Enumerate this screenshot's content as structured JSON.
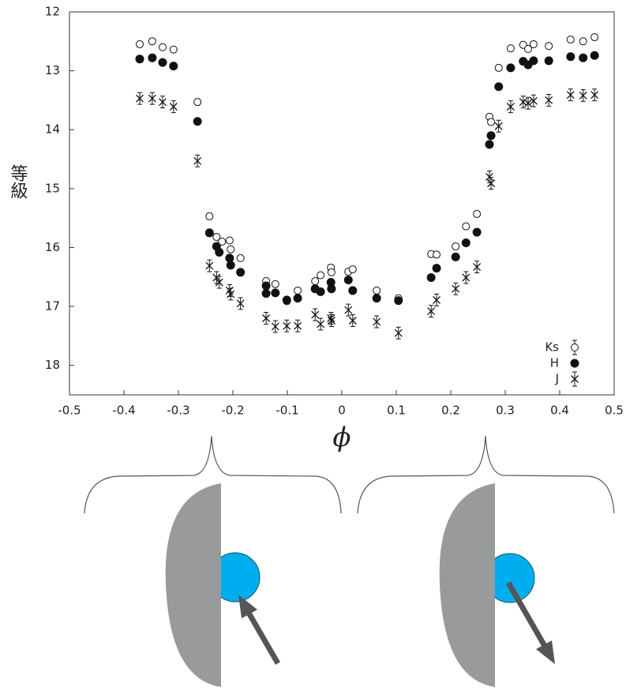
{
  "chart_data": {
    "type": "scatter",
    "xlabel": "ϕ",
    "ylabel": "等級",
    "xlim": [
      -0.5,
      0.5
    ],
    "xticks": [
      -0.5,
      -0.4,
      -0.3,
      -0.2,
      -0.1,
      0,
      0.1,
      0.2,
      0.3,
      0.4,
      0.5
    ],
    "ylim": [
      12,
      18.5
    ],
    "yticks": [
      12,
      13,
      14,
      15,
      16,
      17,
      18
    ],
    "y_inverted": true,
    "legend": "lower right",
    "series": [
      {
        "name": "Ks",
        "marker": "open-circle",
        "color": "#111111",
        "x": [
          -0.371,
          -0.348,
          -0.329,
          -0.309,
          -0.265,
          -0.243,
          -0.23,
          -0.22,
          -0.206,
          -0.204,
          -0.186,
          -0.139,
          -0.122,
          -0.101,
          -0.081,
          -0.049,
          -0.039,
          -0.02,
          -0.019,
          0.012,
          0.02,
          0.064,
          0.104,
          0.164,
          0.174,
          0.209,
          0.228,
          0.248,
          0.271,
          0.274,
          0.288,
          0.31,
          0.333,
          0.342,
          0.352,
          0.38,
          0.42,
          0.443,
          0.464
        ],
        "values": [
          12.55,
          12.5,
          12.6,
          12.64,
          13.53,
          15.47,
          15.82,
          15.9,
          15.88,
          16.03,
          16.18,
          16.57,
          16.62,
          16.91,
          16.73,
          16.57,
          16.47,
          16.34,
          16.42,
          16.41,
          16.37,
          16.73,
          16.86,
          16.11,
          16.12,
          15.98,
          15.64,
          15.43,
          13.78,
          13.87,
          12.95,
          12.62,
          12.56,
          12.63,
          12.55,
          12.58,
          12.47,
          12.5,
          12.43
        ],
        "errors": [
          0.05,
          0.05,
          0.05,
          0.05,
          0.05,
          0.05,
          0.05,
          0.05,
          0.05,
          0.05,
          0.05,
          0.05,
          0.05,
          0.05,
          0.05,
          0.05,
          0.05,
          0.05,
          0.05,
          0.05,
          0.05,
          0.05,
          0.05,
          0.05,
          0.05,
          0.05,
          0.05,
          0.05,
          0.05,
          0.05,
          0.05,
          0.05,
          0.05,
          0.05,
          0.05,
          0.05,
          0.05,
          0.05,
          0.05
        ]
      },
      {
        "name": "H",
        "marker": "filled-circle",
        "color": "#111111",
        "x": [
          -0.371,
          -0.348,
          -0.329,
          -0.309,
          -0.265,
          -0.243,
          -0.23,
          -0.225,
          -0.206,
          -0.204,
          -0.186,
          -0.139,
          -0.139,
          -0.122,
          -0.101,
          -0.081,
          -0.049,
          -0.039,
          -0.02,
          -0.019,
          0.012,
          0.02,
          0.064,
          0.104,
          0.164,
          0.174,
          0.209,
          0.228,
          0.248,
          0.271,
          0.274,
          0.288,
          0.31,
          0.333,
          0.342,
          0.352,
          0.38,
          0.42,
          0.443,
          0.464
        ],
        "values": [
          12.8,
          12.78,
          12.86,
          12.92,
          13.86,
          15.75,
          15.98,
          16.08,
          16.18,
          16.3,
          16.42,
          16.65,
          16.78,
          16.77,
          16.89,
          16.86,
          16.7,
          16.75,
          16.59,
          16.7,
          16.55,
          16.73,
          16.86,
          16.9,
          16.51,
          16.35,
          16.16,
          15.92,
          15.74,
          14.25,
          14.1,
          13.27,
          12.95,
          12.84,
          12.9,
          12.83,
          12.83,
          12.76,
          12.78,
          12.74
        ]
      },
      {
        "name": "J",
        "marker": "cross",
        "color": "#111111",
        "x": [
          -0.371,
          -0.348,
          -0.329,
          -0.309,
          -0.265,
          -0.243,
          -0.23,
          -0.225,
          -0.206,
          -0.204,
          -0.186,
          -0.139,
          -0.122,
          -0.101,
          -0.081,
          -0.049,
          -0.039,
          -0.02,
          -0.019,
          0.012,
          0.02,
          0.064,
          0.104,
          0.164,
          0.174,
          0.209,
          0.228,
          0.248,
          0.271,
          0.274,
          0.288,
          0.31,
          0.333,
          0.342,
          0.352,
          0.38,
          0.42,
          0.443,
          0.464
        ],
        "values": [
          13.47,
          13.47,
          13.53,
          13.61,
          14.53,
          16.31,
          16.51,
          16.59,
          16.73,
          16.79,
          16.95,
          17.2,
          17.34,
          17.33,
          17.33,
          17.14,
          17.3,
          17.2,
          17.24,
          17.06,
          17.24,
          17.26,
          17.45,
          17.08,
          16.89,
          16.7,
          16.51,
          16.33,
          14.8,
          14.91,
          13.94,
          13.61,
          13.53,
          13.55,
          13.51,
          13.5,
          13.41,
          13.42,
          13.41
        ],
        "errors": [
          0.1,
          0.1,
          0.1,
          0.1,
          0.1,
          0.1,
          0.1,
          0.1,
          0.1,
          0.1,
          0.1,
          0.1,
          0.1,
          0.1,
          0.1,
          0.1,
          0.1,
          0.1,
          0.1,
          0.1,
          0.1,
          0.1,
          0.1,
          0.1,
          0.1,
          0.1,
          0.1,
          0.1,
          0.1,
          0.1,
          0.1,
          0.1,
          0.1,
          0.1,
          0.1,
          0.1,
          0.1,
          0.1,
          0.1
        ]
      }
    ]
  }
}
